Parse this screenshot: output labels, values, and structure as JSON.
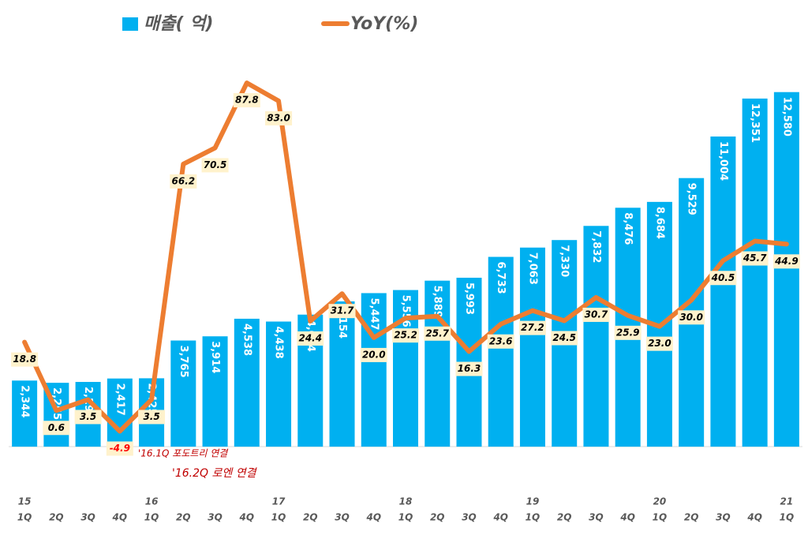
{
  "chart_data": {
    "type": "combo",
    "categories": [
      "1Q",
      "2Q",
      "3Q",
      "4Q",
      "1Q",
      "2Q",
      "3Q",
      "4Q",
      "1Q",
      "2Q",
      "3Q",
      "4Q",
      "1Q",
      "2Q",
      "3Q",
      "4Q",
      "1Q",
      "2Q",
      "3Q",
      "4Q",
      "1Q",
      "2Q",
      "3Q",
      "4Q",
      "1Q"
    ],
    "year_labels": [
      "15",
      null,
      null,
      null,
      "16",
      null,
      null,
      null,
      "17",
      null,
      null,
      null,
      "18",
      null,
      null,
      null,
      "19",
      null,
      null,
      null,
      "20",
      null,
      null,
      null,
      "21"
    ],
    "series": [
      {
        "name": "매출( 억)",
        "type": "bar",
        "color": "#00b0f0",
        "values": [
          2344,
          2265,
          2296,
          2417,
          2425,
          3765,
          3914,
          4538,
          4438,
          4684,
          5154,
          5447,
          5556,
          5889,
          5993,
          6733,
          7063,
          7330,
          7832,
          8476,
          8684,
          9529,
          11004,
          12351,
          12580
        ],
        "value_labels": [
          "2,344",
          "2,265",
          "2,296",
          "2,417",
          "2,425",
          "3,765",
          "3,914",
          "4,538",
          "4,438",
          "4,684",
          "5,154",
          "5,447",
          "5,556",
          "5,889",
          "5,993",
          "6,733",
          "7,063",
          "7,330",
          "7,832",
          "8,476",
          "8,684",
          "9,529",
          "11,004",
          "12,351",
          "12,580"
        ]
      },
      {
        "name": "YoY(%)",
        "type": "line",
        "axis": "y2",
        "color": "#ed7d31",
        "values": [
          18.8,
          0.6,
          3.5,
          -4.9,
          3.5,
          66.2,
          70.5,
          87.8,
          83.0,
          24.4,
          31.7,
          20.0,
          25.2,
          25.7,
          16.3,
          23.6,
          27.2,
          24.5,
          30.7,
          25.9,
          23.0,
          30.0,
          40.5,
          45.7,
          44.9
        ],
        "value_labels": [
          "18.8",
          "0.6",
          "3.5",
          "-4.9",
          "3.5",
          "66.2",
          "70.5",
          "87.8",
          "83.0",
          "24.4",
          "31.7",
          "20.0",
          "25.2",
          "25.7",
          "16.3",
          "23.6",
          "27.2",
          "24.5",
          "30.7",
          "25.9",
          "23.0",
          "30.0",
          "40.5",
          "45.7",
          "44.9"
        ]
      }
    ],
    "ylim": [
      0,
      14000
    ],
    "y2lim": [
      -9,
      96
    ],
    "annotations": [
      "'16.1Q 포도트리 연결",
      "'16.2Q 로엔 연결"
    ]
  }
}
